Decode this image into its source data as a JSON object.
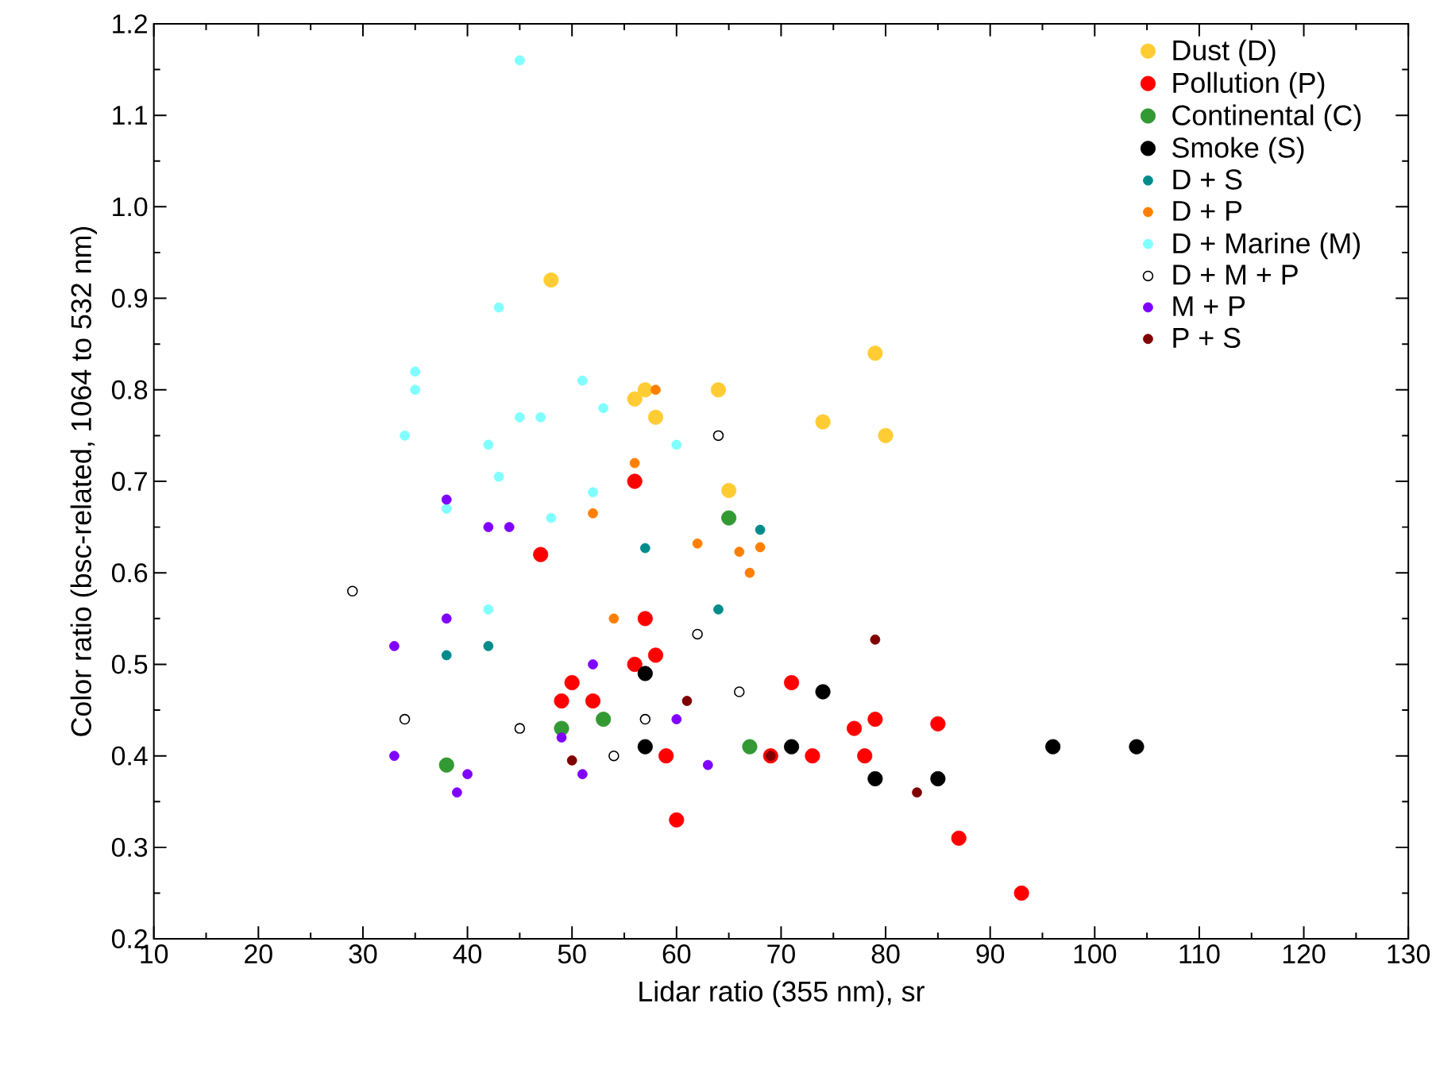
{
  "chart_data": {
    "type": "scatter",
    "xlabel": "Lidar ratio (355 nm), sr",
    "ylabel": "Color ratio (bsc-related, 1064 to 532 nm)",
    "xlim": [
      10,
      130
    ],
    "xticks": [
      10,
      20,
      30,
      40,
      50,
      60,
      70,
      80,
      90,
      100,
      110,
      120,
      130
    ],
    "ylim": [
      0.2,
      1.2
    ],
    "yticks": [
      0.2,
      0.3,
      0.4,
      0.5,
      0.6,
      0.7,
      0.8,
      0.9,
      {
        "value": 1,
        "label": "1.0"
      },
      1.1,
      1.2
    ],
    "grid": false,
    "legend": "top right",
    "marker": "circle",
    "series": [
      {
        "name": "Dust (D)",
        "color": "#ffcc33",
        "x": [
          48,
          56,
          57,
          58,
          64,
          65,
          74,
          79,
          80
        ],
        "values": [
          0.92,
          0.79,
          0.8,
          0.77,
          0.8,
          0.69,
          0.765,
          0.84,
          0.75
        ]
      },
      {
        "name": "Pollution (P)",
        "color": "#ff0000",
        "x": [
          47,
          56,
          57,
          56,
          58,
          49,
          50,
          52,
          59,
          60,
          69,
          71,
          73,
          77,
          78,
          79,
          85,
          87,
          93
        ],
        "values": [
          0.62,
          0.7,
          0.55,
          0.5,
          0.51,
          0.46,
          0.48,
          0.46,
          0.4,
          0.33,
          0.4,
          0.48,
          0.4,
          0.43,
          0.4,
          0.44,
          0.435,
          0.31,
          0.25
        ]
      },
      {
        "name": "Continental (C)",
        "color": "#339933",
        "x": [
          38,
          49,
          53,
          65,
          67
        ],
        "values": [
          0.39,
          0.43,
          0.44,
          0.66,
          0.41
        ]
      },
      {
        "name": "Smoke (S)",
        "color": "#000000",
        "x": [
          57,
          57,
          71,
          74,
          79,
          85,
          96,
          104
        ],
        "values": [
          0.49,
          0.41,
          0.41,
          0.47,
          0.375,
          0.375,
          0.41,
          0.41
        ]
      },
      {
        "name": "D + S",
        "color": "#008b8b",
        "x": [
          38,
          42,
          57,
          64,
          68
        ],
        "values": [
          0.51,
          0.52,
          0.627,
          0.56,
          0.647
        ]
      },
      {
        "name": "D + P",
        "color": "#ff8000",
        "x": [
          56,
          58,
          52,
          54,
          62,
          66,
          67,
          68
        ],
        "values": [
          0.72,
          0.8,
          0.665,
          0.55,
          0.632,
          0.623,
          0.6,
          0.628
        ]
      },
      {
        "name": "D + Marine (M)",
        "color": "#80ffff",
        "x": [
          45,
          43,
          35,
          35,
          34,
          51,
          45,
          47,
          53,
          60,
          42,
          38,
          43,
          52,
          48,
          42
        ],
        "values": [
          1.16,
          0.89,
          0.82,
          0.8,
          0.75,
          0.81,
          0.77,
          0.77,
          0.78,
          0.74,
          0.74,
          0.67,
          0.705,
          0.688,
          0.66,
          0.56
        ]
      },
      {
        "name": "D + M + P",
        "color": "#000000",
        "marker": "circle-open",
        "x": [
          29,
          34,
          45,
          54,
          57,
          62,
          64,
          66
        ],
        "values": [
          0.58,
          0.44,
          0.43,
          0.4,
          0.44,
          0.533,
          0.75,
          0.47
        ]
      },
      {
        "name": "M + P",
        "color": "#8000ff",
        "x": [
          38,
          42,
          44,
          38,
          33,
          52,
          49,
          51,
          40,
          39,
          33,
          60,
          63
        ],
        "values": [
          0.68,
          0.65,
          0.65,
          0.55,
          0.52,
          0.5,
          0.42,
          0.38,
          0.38,
          0.36,
          0.4,
          0.44,
          0.39
        ]
      },
      {
        "name": "P + S",
        "color": "#800000",
        "x": [
          50,
          61,
          69,
          79,
          83
        ],
        "values": [
          0.395,
          0.46,
          0.4,
          0.527,
          0.36
        ]
      }
    ]
  }
}
